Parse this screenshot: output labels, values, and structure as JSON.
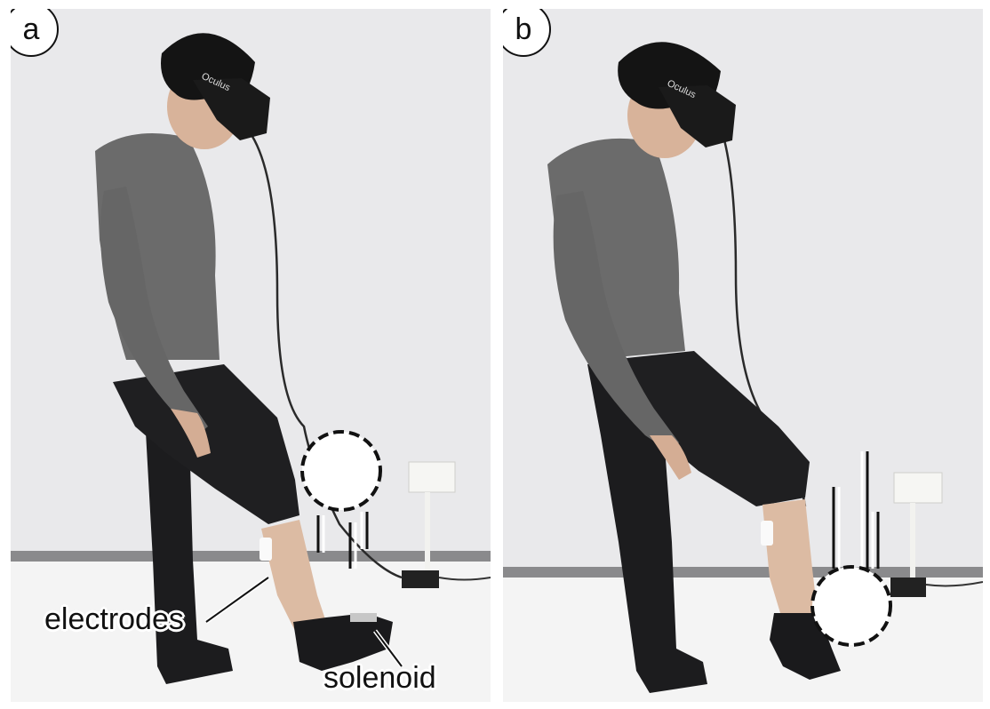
{
  "panels": [
    {
      "label": "a",
      "annotations": {
        "electrodes": "electrodes",
        "solenoid": "solenoid"
      }
    },
    {
      "label": "b"
    }
  ],
  "colors": {
    "wall": "#e8e8ea",
    "floor": "#f2f2f2",
    "shirt": "#6b6b6b",
    "pants": "#1c1c1e",
    "skin": "#d9b49a",
    "hair": "#141414",
    "headset": "#1a1a1a"
  }
}
